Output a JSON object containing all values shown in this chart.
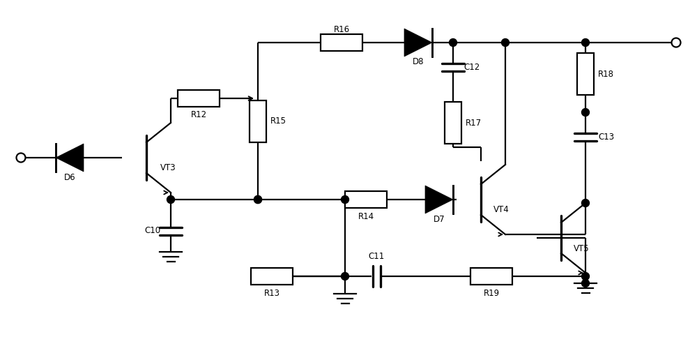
{
  "bg": "#ffffff",
  "lc": "#000000",
  "lw": 1.6,
  "fw": 10.0,
  "fh": 5.16,
  "dpi": 100,
  "xlim": [
    0,
    100
  ],
  "ylim": [
    0,
    51.6
  ]
}
